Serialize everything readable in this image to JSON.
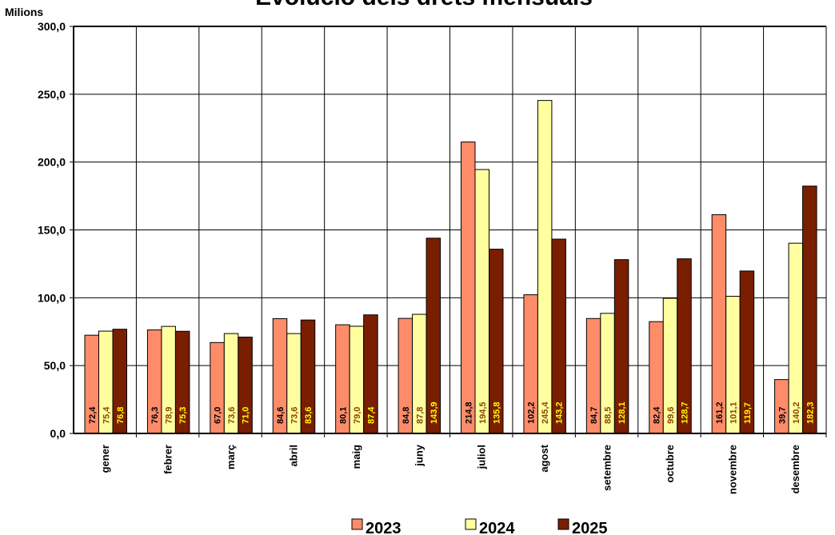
{
  "chart_data": {
    "type": "bar",
    "title": "Evolució dels drets mensuals",
    "unit_label": "Milions",
    "categories": [
      "gener",
      "febrer",
      "març",
      "abril",
      "maig",
      "juny",
      "juliol",
      "agost",
      "setembre",
      "octubre",
      "novembre",
      "desembre"
    ],
    "series": [
      {
        "name": "2023",
        "color": "#FF8C69",
        "label_color": "#000000",
        "values": [
          72.4,
          76.3,
          67.0,
          84.6,
          80.1,
          84.8,
          214.8,
          102.2,
          84.7,
          82.4,
          161.2,
          39.7
        ]
      },
      {
        "name": "2024",
        "color": "#FFFFA0",
        "label_color": "#8B4500",
        "values": [
          75.4,
          78.9,
          73.6,
          73.6,
          79.0,
          87.8,
          194.5,
          245.4,
          88.5,
          99.6,
          101.1,
          140.2
        ]
      },
      {
        "name": "2025",
        "color": "#7A1E00",
        "label_color": "#FFFF00",
        "values": [
          76.8,
          75.3,
          71.0,
          83.6,
          87.4,
          143.9,
          135.8,
          143.2,
          128.1,
          128.7,
          119.7,
          182.3
        ]
      }
    ],
    "ylim": [
      0,
      300
    ],
    "yticks": [
      "0,0",
      "50,0",
      "100,0",
      "150,0",
      "200,0",
      "250,0",
      "300,0"
    ],
    "grid": true,
    "legend_position": "bottom",
    "decimal_separator": ","
  }
}
